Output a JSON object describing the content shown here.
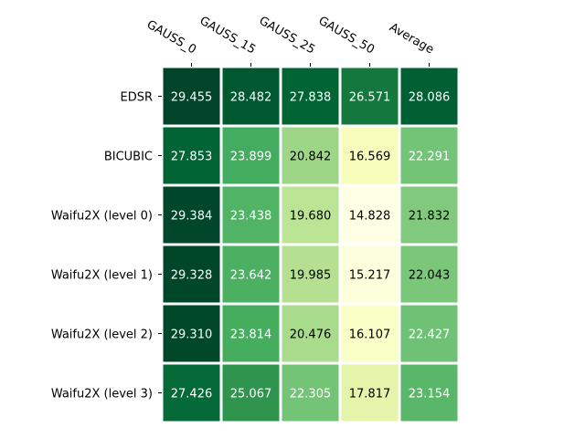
{
  "chart_data": {
    "type": "heatmap",
    "colormap": "YlGn",
    "columns": [
      "GAUSS_0",
      "GAUSS_15",
      "GAUSS_25",
      "GAUSS_50",
      "Average"
    ],
    "rows": [
      "EDSR",
      "BICUBIC",
      "Waifu2X (level 0)",
      "Waifu2X (level 1)",
      "Waifu2X (level 2)",
      "Waifu2X (level 3)"
    ],
    "values": [
      [
        29.455,
        28.482,
        27.838,
        26.571,
        28.086
      ],
      [
        27.853,
        23.899,
        20.842,
        16.569,
        22.291
      ],
      [
        29.384,
        23.438,
        19.68,
        14.828,
        21.832
      ],
      [
        29.328,
        23.642,
        19.985,
        15.217,
        22.043
      ],
      [
        29.31,
        23.814,
        20.476,
        16.107,
        22.427
      ],
      [
        27.426,
        25.067,
        22.305,
        17.817,
        23.154
      ]
    ],
    "value_labels": [
      [
        "29.455",
        "28.482",
        "27.838",
        "26.571",
        "28.086"
      ],
      [
        "27.853",
        "23.899",
        "20.842",
        "16.569",
        "22.291"
      ],
      [
        "29.384",
        "23.438",
        "19.680",
        "14.828",
        "21.832"
      ],
      [
        "29.328",
        "23.642",
        "19.985",
        "15.217",
        "22.043"
      ],
      [
        "29.310",
        "23.814",
        "20.476",
        "16.107",
        "22.427"
      ],
      [
        "27.426",
        "25.067",
        "22.305",
        "17.817",
        "23.154"
      ]
    ],
    "column_labels_position": "top",
    "grid": false,
    "colors": {
      "low": "#ffffe5",
      "high": "#004529",
      "text_light": "#ffffff",
      "text_dark": "#000000"
    }
  }
}
